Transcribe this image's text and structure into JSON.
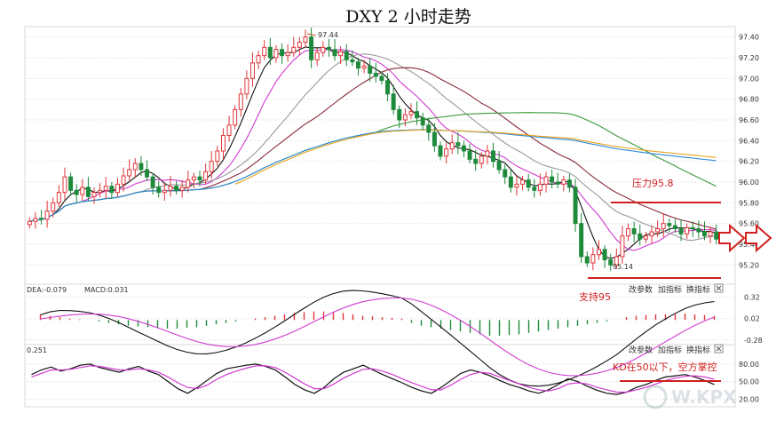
{
  "title": "DXY 2 小时走势",
  "price_axis": {
    "ticks": [
      "97.40",
      "97.20",
      "97.00",
      "96.80",
      "96.60",
      "96.40",
      "96.20",
      "96.00",
      "95.80",
      "95.60",
      "95.40",
      "95.20"
    ],
    "range": [
      95.1,
      97.5
    ]
  },
  "macd_panel": {
    "header": {
      "dea": "DEA:-0.079",
      "macd": "MACD:0.031"
    },
    "ticks": [
      "0.32",
      "0.02",
      "-0.28"
    ],
    "buttons": [
      "改参数",
      "加指标",
      "换指标"
    ]
  },
  "kd_panel": {
    "header": "0.251",
    "ticks": [
      "80.00",
      "50.00",
      "20.00"
    ],
    "buttons": [
      "改参数",
      "加指标",
      "换指标"
    ]
  },
  "annotations": {
    "high_label": "97.44",
    "low_label": "95.14",
    "resistance": "压力95.8",
    "support": "支持95",
    "kd_note": "KD在50以下，空方掌控"
  },
  "watermark": "W.KPX",
  "colors": {
    "up": "#e0363a",
    "down": "#1e8a3c",
    "ma_black": "#111111",
    "ma_magenta": "#d23ad2",
    "ma_gray": "#9a9a9a",
    "ma_brown": "#8b2a3a",
    "ma_green": "#3a9a3a",
    "ma_blue": "#2f8ad8",
    "ma_orange": "#e8a21c",
    "annotation": "#d02020"
  },
  "chart_data": [
    {
      "type": "candlestick",
      "title": "DXY 2 小时走势",
      "ylim": [
        95.1,
        97.5
      ],
      "close": [
        95.62,
        95.65,
        95.64,
        95.72,
        95.8,
        95.9,
        96.05,
        95.92,
        95.88,
        95.95,
        95.86,
        95.9,
        95.92,
        95.96,
        95.9,
        95.98,
        96.06,
        96.12,
        96.18,
        96.12,
        96.05,
        95.95,
        95.9,
        95.92,
        95.96,
        95.92,
        95.95,
        96.02,
        96.05,
        96.02,
        96.1,
        96.2,
        96.3,
        96.45,
        96.55,
        96.7,
        96.85,
        97.0,
        97.15,
        97.22,
        97.3,
        97.2,
        97.28,
        97.22,
        97.25,
        97.3,
        97.35,
        97.4,
        97.18,
        97.25,
        97.3,
        97.28,
        97.22,
        97.26,
        97.18,
        97.16,
        97.1,
        97.12,
        97.05,
        97.02,
        96.98,
        96.85,
        96.7,
        96.6,
        96.65,
        96.68,
        96.62,
        96.55,
        96.48,
        96.35,
        96.25,
        96.32,
        96.38,
        96.35,
        96.3,
        96.22,
        96.18,
        96.25,
        96.3,
        96.2,
        96.12,
        96.05,
        95.95,
        95.98,
        96.02,
        95.95,
        95.92,
        95.98,
        96.05,
        96.0,
        95.98,
        96.02,
        95.95,
        95.6,
        95.28,
        95.22,
        95.3,
        95.35,
        95.25,
        95.2,
        95.28,
        95.48,
        95.55,
        95.5,
        95.45,
        95.48,
        95.52,
        95.55,
        95.6,
        95.58,
        95.55,
        95.5,
        95.56,
        95.55,
        95.52,
        95.48,
        95.52,
        95.45
      ],
      "high_label": 97.44,
      "low_label": 95.14,
      "resistance": 95.8,
      "support": 95.0
    },
    {
      "type": "bar",
      "name": "MACD",
      "values": [
        0.08,
        0.06,
        0.04,
        0.02,
        0.01,
        0.0,
        -0.02,
        -0.04,
        -0.06,
        -0.08,
        -0.09,
        -0.1,
        -0.11,
        -0.12,
        -0.12,
        -0.11,
        -0.1,
        -0.08,
        -0.06,
        -0.04,
        -0.02,
        0.0,
        0.02,
        0.04,
        0.06,
        0.08,
        0.1,
        0.11,
        0.12,
        0.12,
        0.11,
        0.1,
        0.08,
        0.06,
        0.05,
        0.04,
        0.03,
        0.02,
        -0.04,
        -0.08,
        -0.1,
        -0.12,
        -0.14,
        -0.16,
        -0.18,
        -0.2,
        -0.22,
        -0.22,
        -0.21,
        -0.2,
        -0.18,
        -0.16,
        -0.14,
        -0.12,
        -0.1,
        -0.08,
        -0.06,
        -0.04,
        -0.02,
        0.0,
        0.04,
        0.06,
        0.07,
        0.08,
        0.08,
        0.09,
        0.09,
        0.08,
        0.07,
        0.06
      ],
      "ylim": [
        -0.32,
        0.34
      ]
    },
    {
      "type": "line",
      "name": "KD",
      "k": [
        62,
        70,
        75,
        68,
        72,
        78,
        80,
        74,
        70,
        66,
        72,
        76,
        68,
        62,
        50,
        38,
        30,
        40,
        52,
        64,
        72,
        75,
        78,
        80,
        76,
        70,
        58,
        45,
        36,
        30,
        40,
        55,
        66,
        72,
        78,
        70,
        62,
        55,
        48,
        40,
        34,
        30,
        40,
        52,
        64,
        70,
        66,
        60,
        52,
        45,
        40,
        34,
        30,
        36,
        45,
        55,
        50,
        42,
        35,
        30,
        28,
        32,
        40,
        45,
        52,
        58,
        60,
        62,
        58,
        52,
        45
      ],
      "d": [
        58,
        64,
        70,
        70,
        71,
        74,
        77,
        76,
        73,
        70,
        70,
        72,
        70,
        66,
        58,
        48,
        40,
        38,
        44,
        54,
        62,
        68,
        73,
        77,
        77,
        74,
        66,
        56,
        46,
        38,
        38,
        46,
        56,
        64,
        71,
        72,
        68,
        62,
        55,
        48,
        42,
        36,
        36,
        44,
        54,
        62,
        66,
        64,
        58,
        52,
        46,
        40,
        36,
        34,
        38,
        46,
        48,
        46,
        40,
        36,
        32,
        32,
        36,
        40,
        46,
        52,
        56,
        59,
        60,
        58,
        54
      ],
      "ylim": [
        10,
        95
      ]
    }
  ]
}
